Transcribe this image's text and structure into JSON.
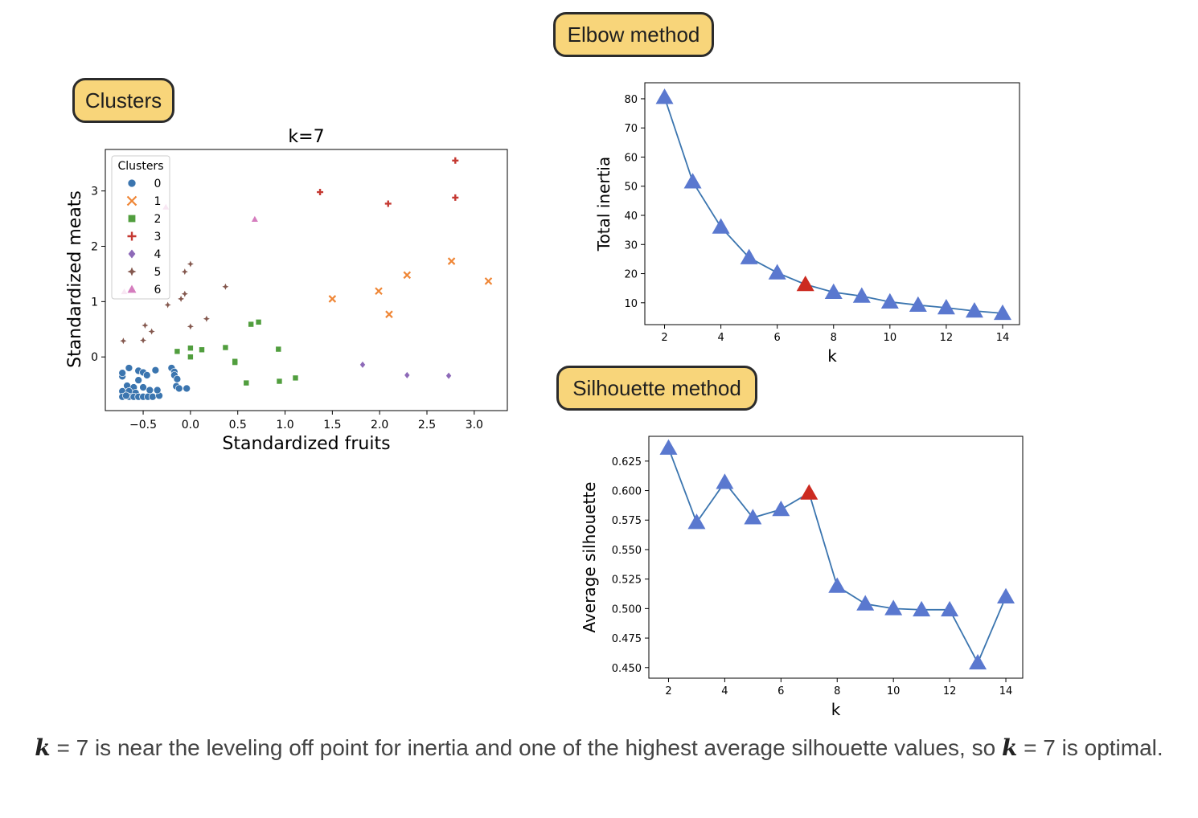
{
  "badges": {
    "elbow": "Elbow method",
    "clusters": "Clusters",
    "silhouette": "Silhouette method"
  },
  "caption": {
    "var": "k",
    "part1": " = 7 is near the leveling off point for inertia and one of the highest average silhouette values, so ",
    "part2": " = 7 is optimal."
  },
  "chart_data": [
    {
      "type": "scatter",
      "title": "k=7",
      "xlabel": "Standardized fruits",
      "ylabel": "Standardized meats",
      "xlim": [
        -0.9,
        3.35
      ],
      "ylim": [
        -0.97,
        3.75
      ],
      "xticks": [
        -0.5,
        0.0,
        0.5,
        1.0,
        1.5,
        2.0,
        2.5,
        3.0
      ],
      "xtick_labels": [
        "−0.5",
        "0.0",
        "0.5",
        "1.0",
        "1.5",
        "2.0",
        "2.5",
        "3.0"
      ],
      "yticks": [
        0,
        1,
        2,
        3
      ],
      "legend": {
        "title": "Clusters",
        "placement": "upper-left"
      },
      "series": [
        {
          "name": "0",
          "marker": "circle",
          "color": "#3b75af",
          "points": [
            [
              -0.72,
              -0.35
            ],
            [
              -0.72,
              -0.29
            ],
            [
              -0.65,
              -0.2
            ],
            [
              -0.55,
              -0.25
            ],
            [
              -0.5,
              -0.28
            ],
            [
              -0.46,
              -0.33
            ],
            [
              -0.37,
              -0.24
            ],
            [
              -0.67,
              -0.52
            ],
            [
              -0.6,
              -0.55
            ],
            [
              -0.72,
              -0.62
            ],
            [
              -0.65,
              -0.62
            ],
            [
              -0.58,
              -0.65
            ],
            [
              -0.5,
              -0.55
            ],
            [
              -0.43,
              -0.6
            ],
            [
              -0.72,
              -0.72
            ],
            [
              -0.65,
              -0.72
            ],
            [
              -0.6,
              -0.72
            ],
            [
              -0.55,
              -0.72
            ],
            [
              -0.5,
              -0.72
            ],
            [
              -0.45,
              -0.72
            ],
            [
              -0.4,
              -0.72
            ],
            [
              -0.33,
              -0.7
            ],
            [
              -0.35,
              -0.6
            ],
            [
              -0.55,
              -0.42
            ],
            [
              -0.2,
              -0.2
            ],
            [
              -0.17,
              -0.27
            ],
            [
              -0.17,
              -0.33
            ],
            [
              -0.14,
              -0.4
            ],
            [
              -0.15,
              -0.53
            ],
            [
              -0.12,
              -0.57
            ],
            [
              -0.04,
              -0.57
            ],
            [
              -0.68,
              -0.7
            ]
          ]
        },
        {
          "name": "1",
          "marker": "x",
          "color": "#ef8636",
          "points": [
            [
              1.5,
              1.05
            ],
            [
              1.99,
              1.19
            ],
            [
              2.1,
              0.77
            ],
            [
              2.29,
              1.48
            ],
            [
              2.76,
              1.73
            ],
            [
              3.15,
              1.37
            ]
          ]
        },
        {
          "name": "2",
          "marker": "square",
          "color": "#519e3e",
          "points": [
            [
              -0.14,
              0.1
            ],
            [
              0.0,
              0.16
            ],
            [
              0.0,
              0.0
            ],
            [
              0.12,
              0.13
            ],
            [
              0.37,
              0.17
            ],
            [
              0.47,
              -0.1
            ],
            [
              0.47,
              -0.08
            ],
            [
              0.59,
              -0.47
            ],
            [
              0.64,
              0.59
            ],
            [
              0.72,
              0.63
            ],
            [
              0.93,
              0.14
            ],
            [
              0.94,
              -0.44
            ],
            [
              1.11,
              -0.38
            ]
          ]
        },
        {
          "name": "3",
          "marker": "plus",
          "color": "#c53932",
          "points": [
            [
              1.37,
              2.98
            ],
            [
              2.09,
              2.77
            ],
            [
              2.8,
              3.55
            ],
            [
              2.8,
              2.88
            ]
          ]
        },
        {
          "name": "4",
          "marker": "diamond",
          "color": "#8d69b8",
          "points": [
            [
              1.82,
              -0.14
            ],
            [
              2.29,
              -0.33
            ],
            [
              2.73,
              -0.34
            ]
          ]
        },
        {
          "name": "5",
          "marker": "star4",
          "color": "#84584e",
          "points": [
            [
              -0.71,
              0.29
            ],
            [
              -0.5,
              0.3
            ],
            [
              -0.48,
              0.57
            ],
            [
              -0.41,
              0.46
            ],
            [
              -0.24,
              0.94
            ],
            [
              -0.1,
              1.05
            ],
            [
              -0.06,
              1.14
            ],
            [
              -0.06,
              1.54
            ],
            [
              0.0,
              1.68
            ],
            [
              0.0,
              0.55
            ],
            [
              0.17,
              0.69
            ],
            [
              0.37,
              1.27
            ]
          ]
        },
        {
          "name": "6",
          "marker": "triangle",
          "color": "#d57dbe",
          "points": [
            [
              -0.26,
              2.71
            ],
            [
              0.68,
              2.49
            ],
            [
              -0.7,
              1.18
            ]
          ]
        }
      ]
    },
    {
      "type": "line",
      "title": "",
      "xlabel": "k",
      "ylabel": "Total inertia",
      "xlim": [
        1.3,
        14.6
      ],
      "ylim": [
        2.5,
        85.5
      ],
      "xticks": [
        2,
        4,
        6,
        8,
        10,
        12,
        14
      ],
      "yticks": [
        10,
        20,
        30,
        40,
        50,
        60,
        70,
        80
      ],
      "x": [
        2,
        3,
        4,
        5,
        6,
        7,
        8,
        9,
        10,
        11,
        12,
        13,
        14
      ],
      "y": [
        80.5,
        51.5,
        36.0,
        25.5,
        20.3,
        16.3,
        13.6,
        12.3,
        10.3,
        9.2,
        8.3,
        7.2,
        6.4
      ],
      "highlight_x": 7,
      "marker_color": "#5a78cf",
      "highlight_color": "#cc2b21",
      "line_color": "#3b75af"
    },
    {
      "type": "line",
      "title": "",
      "xlabel": "k",
      "ylabel": "Average silhouette",
      "xlim": [
        1.3,
        14.6
      ],
      "ylim": [
        0.441,
        0.646
      ],
      "xticks": [
        2,
        4,
        6,
        8,
        10,
        12,
        14
      ],
      "yticks": [
        0.45,
        0.475,
        0.5,
        0.525,
        0.55,
        0.575,
        0.6,
        0.625
      ],
      "ytick_labels": [
        "0.450",
        "0.475",
        "0.500",
        "0.525",
        "0.550",
        "0.575",
        "0.600",
        "0.625"
      ],
      "x": [
        2,
        3,
        4,
        5,
        6,
        7,
        8,
        9,
        10,
        11,
        12,
        13,
        14
      ],
      "y": [
        0.636,
        0.573,
        0.607,
        0.577,
        0.584,
        0.598,
        0.519,
        0.504,
        0.5,
        0.499,
        0.499,
        0.454,
        0.51
      ],
      "highlight_x": 7,
      "marker_color": "#5a78cf",
      "highlight_color": "#cc2b21",
      "line_color": "#3b75af"
    }
  ]
}
